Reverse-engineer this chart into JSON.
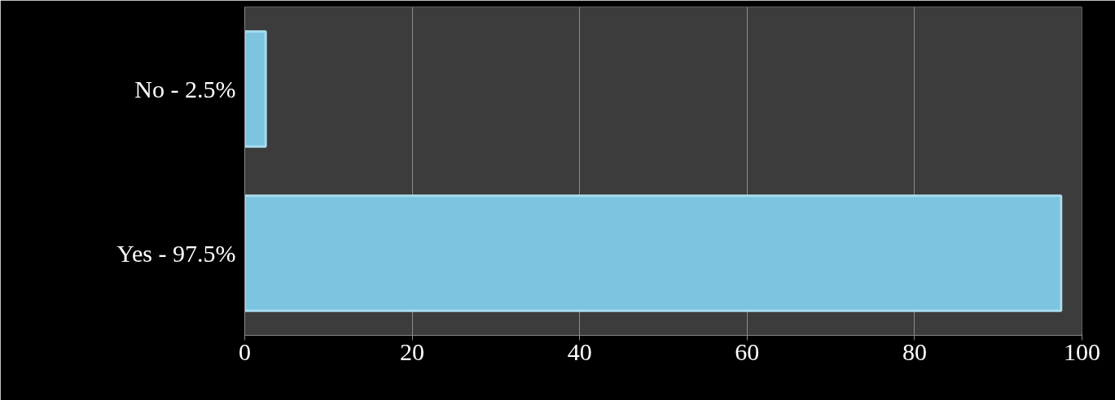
{
  "chart_data": {
    "type": "bar",
    "orientation": "horizontal",
    "categories": [
      "No - 2.5%",
      "Yes - 97.5%"
    ],
    "values": [
      2.5,
      97.5
    ],
    "color": "#7cc4e0",
    "xlim": [
      0,
      100
    ],
    "xticks": [
      0,
      20,
      40,
      60,
      80,
      100
    ],
    "grid": "x"
  }
}
